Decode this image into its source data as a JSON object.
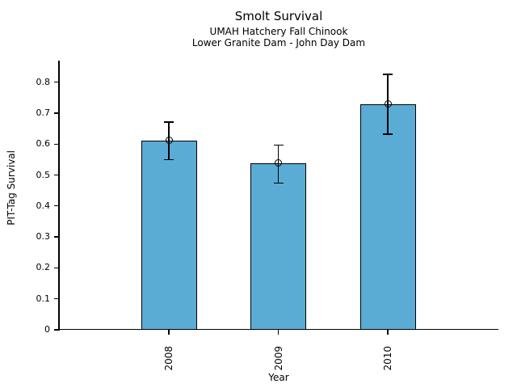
{
  "chart_data": {
    "type": "bar",
    "title": "Smolt Survival",
    "subtitle_line1": "UMAH Hatchery Fall Chinook",
    "subtitle_line2": "Lower Granite Dam - John Day Dam",
    "xlabel": "Year",
    "ylabel": "PIT-Tag Survival",
    "categories": [
      "2008",
      "2009",
      "2010"
    ],
    "values": [
      0.612,
      0.539,
      0.729
    ],
    "error_lower": [
      0.549,
      0.474,
      0.632
    ],
    "error_upper": [
      0.671,
      0.597,
      0.825
    ],
    "ylim": [
      0,
      0.87
    ],
    "yticks": [
      0,
      0.1,
      0.2,
      0.3,
      0.4,
      0.5,
      0.6,
      0.7,
      0.8
    ],
    "ytick_labels": [
      "0",
      "0.1",
      "0.2",
      "0.3",
      "0.4",
      "0.5",
      "0.6",
      "0.7",
      "0.8"
    ],
    "bar_color": "#5AACD5",
    "bar_edge_color": "#000000",
    "errorbar_color": "#000000",
    "marker": "open-circle",
    "grid": false,
    "legend": null
  }
}
